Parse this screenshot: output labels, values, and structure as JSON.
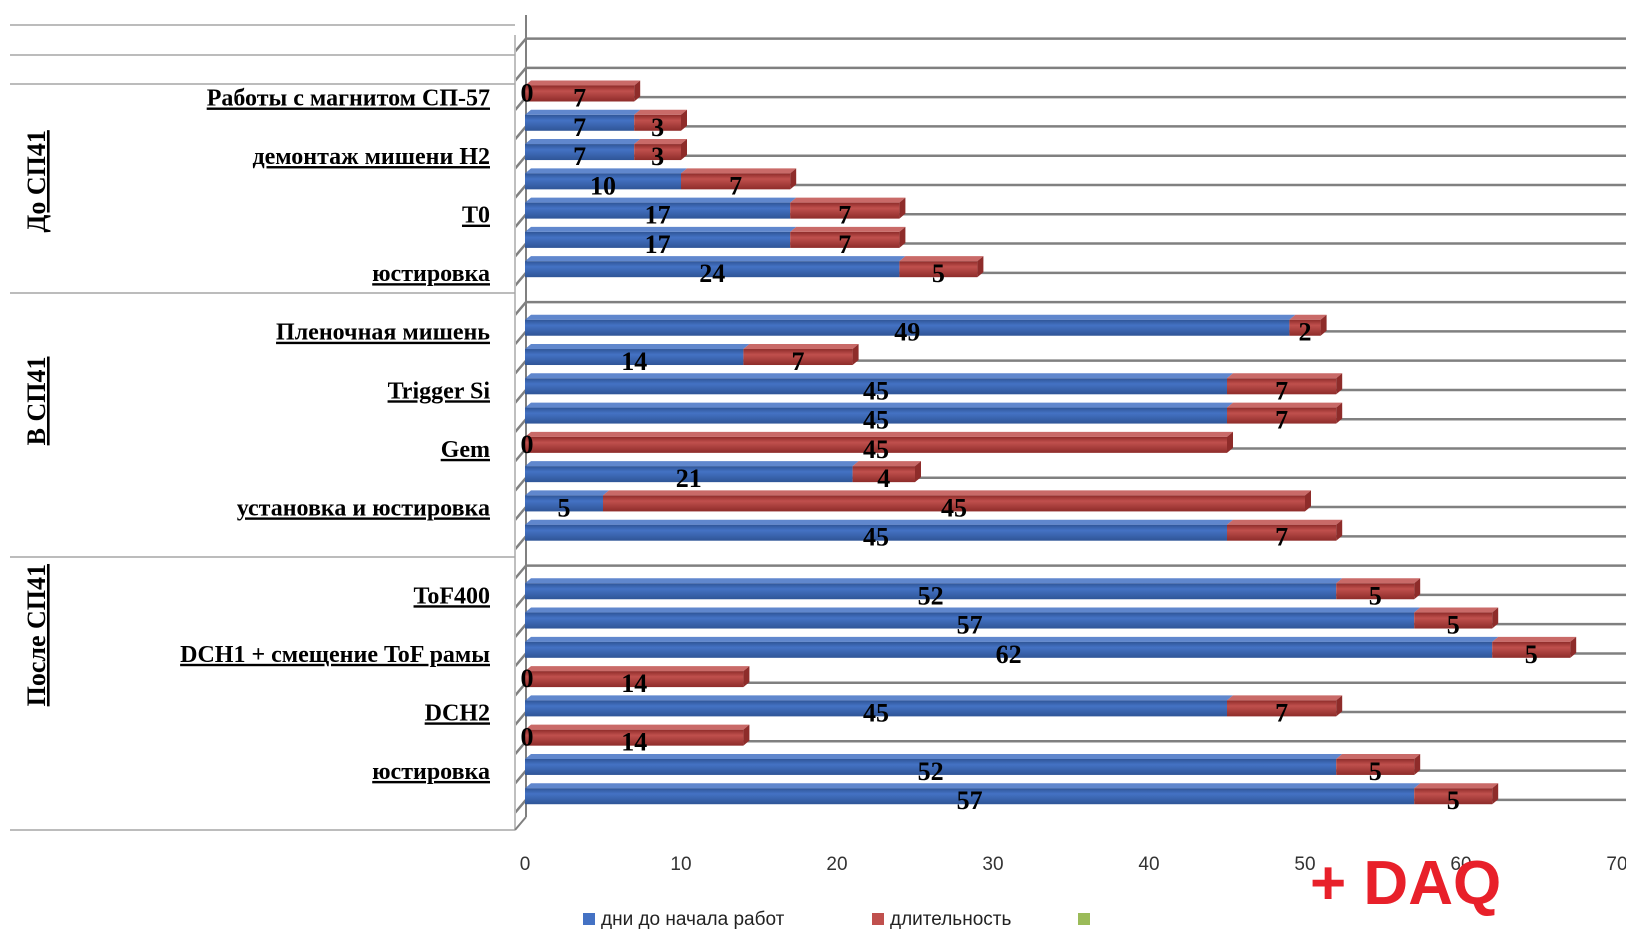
{
  "colors": {
    "series1": "#4472c4",
    "series1_dark": "#2f5597",
    "series2": "#c0504d",
    "series2_dark": "#8e2c2a",
    "series3": "#9bbb59",
    "grid": "#808080",
    "annotation": "#e8202a"
  },
  "annotation": "+ DAQ",
  "chart_data": {
    "type": "bar",
    "orientation": "horizontal",
    "stacked": true,
    "three_d": true,
    "xlim": [
      0,
      70
    ],
    "x_ticks": [
      "0",
      "10",
      "20",
      "30",
      "40",
      "50",
      "60",
      "70"
    ],
    "grid": true,
    "legend_position": "bottom",
    "groups": [
      {
        "label": "До СП41",
        "first_row": 0,
        "last_row": 6
      },
      {
        "label": "В СП41",
        "first_row": 7,
        "last_row": 14
      },
      {
        "label": "После СП41",
        "first_row": 15,
        "last_row": 22
      }
    ],
    "visible_category_labels": [
      {
        "row": 0,
        "label": "Работы с магнитом СП-57"
      },
      {
        "row": 2,
        "label": "демонтаж мишени Н2"
      },
      {
        "row": 4,
        "label": "T0"
      },
      {
        "row": 6,
        "label": "юстировка"
      },
      {
        "row": 8,
        "label": "Пленочная мишень"
      },
      {
        "row": 10,
        "label": "Trigger Si"
      },
      {
        "row": 12,
        "label": "Gem"
      },
      {
        "row": 14,
        "label": "установка и юстировка"
      },
      {
        "row": 17,
        "label": "ToF400"
      },
      {
        "row": 19,
        "label": "DCH1 + смещение ToF рамы"
      },
      {
        "row": 21,
        "label": "DCH2"
      },
      {
        "row": 23,
        "label": "юстировка"
      }
    ],
    "rows": [
      {
        "row": 0,
        "start": 0,
        "duration": 7
      },
      {
        "row": 1,
        "start": 7,
        "duration": 3
      },
      {
        "row": 2,
        "start": 7,
        "duration": 3
      },
      {
        "row": 3,
        "start": 10,
        "duration": 7
      },
      {
        "row": 4,
        "start": 17,
        "duration": 7
      },
      {
        "row": 5,
        "start": 17,
        "duration": 7
      },
      {
        "row": 6,
        "start": 24,
        "duration": 5
      },
      {
        "row": 8,
        "start": 49,
        "duration": 2
      },
      {
        "row": 9,
        "start": 14,
        "duration": 7
      },
      {
        "row": 10,
        "start": 45,
        "duration": 7
      },
      {
        "row": 11,
        "start": 45,
        "duration": 7
      },
      {
        "row": 12,
        "start": 0,
        "duration": 45
      },
      {
        "row": 13,
        "start": 21,
        "duration": 4
      },
      {
        "row": 14,
        "start": 5,
        "duration": 45
      },
      {
        "row": 15,
        "start": 45,
        "duration": 7
      },
      {
        "row": 17,
        "start": 52,
        "duration": 5
      },
      {
        "row": 18,
        "start": 57,
        "duration": 5
      },
      {
        "row": 19,
        "start": 62,
        "duration": 5
      },
      {
        "row": 20,
        "start": 0,
        "duration": 14
      },
      {
        "row": 21,
        "start": 45,
        "duration": 7
      },
      {
        "row": 22,
        "start": 0,
        "duration": 14
      },
      {
        "row": 23,
        "start": 52,
        "duration": 5
      },
      {
        "row": 24,
        "start": 57,
        "duration": 5
      }
    ],
    "series": [
      {
        "name": "дни до начала работ",
        "field": "start"
      },
      {
        "name": "длительность",
        "field": "duration"
      },
      {
        "name": "",
        "field": null
      }
    ]
  }
}
